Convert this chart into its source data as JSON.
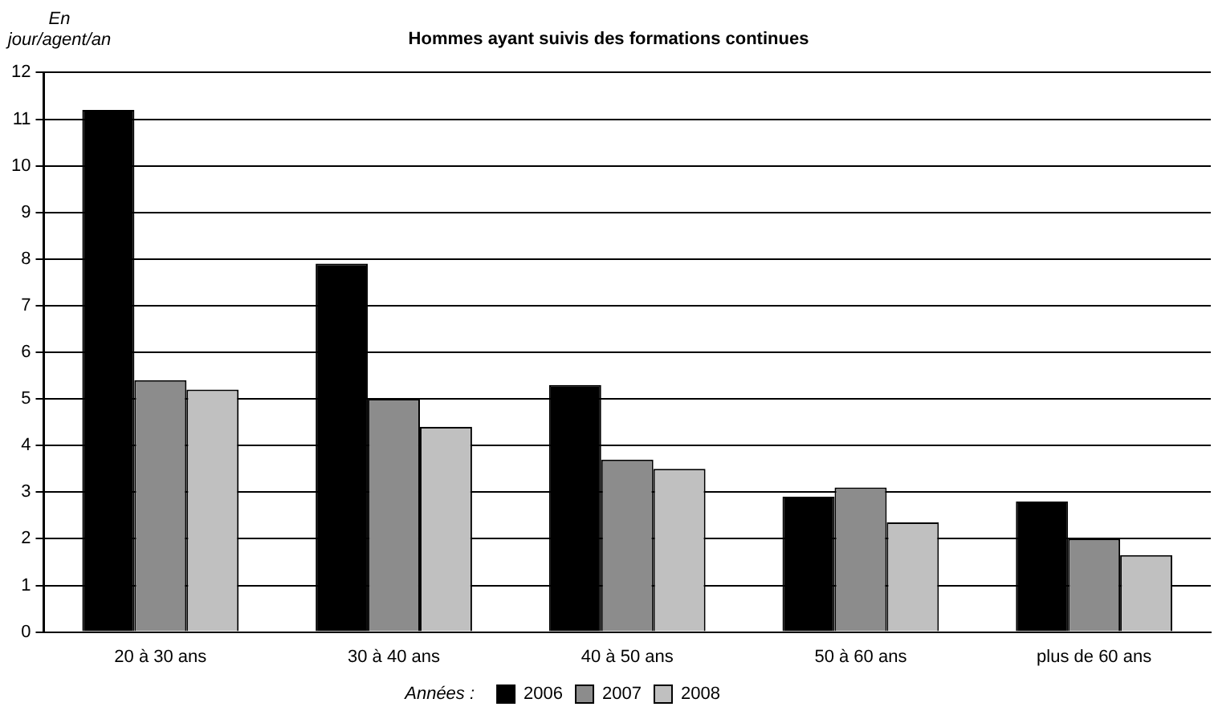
{
  "chart_data": {
    "type": "bar",
    "title": "Hommes ayant suivis des formations continues",
    "ylabel": "En jour/agent/an",
    "legend_title": "Années :",
    "categories": [
      "20 à 30 ans",
      "30 à 40 ans",
      "40 à 50 ans",
      "50 à 60 ans",
      "plus de 60 ans"
    ],
    "series": [
      {
        "name": "2006",
        "color": "#000000",
        "values": [
          11.2,
          7.9,
          5.3,
          2.9,
          2.8
        ]
      },
      {
        "name": "2007",
        "color": "#8c8c8c",
        "values": [
          5.4,
          5.0,
          3.7,
          3.1,
          2.0
        ]
      },
      {
        "name": "2008",
        "color": "#c0c0c0",
        "values": [
          5.2,
          4.4,
          3.5,
          2.35,
          1.65
        ]
      }
    ],
    "ylim": [
      0,
      12
    ],
    "yticks": [
      0,
      1,
      2,
      3,
      4,
      5,
      6,
      7,
      8,
      9,
      10,
      11,
      12
    ],
    "grid": "y",
    "legend": "bottom"
  }
}
